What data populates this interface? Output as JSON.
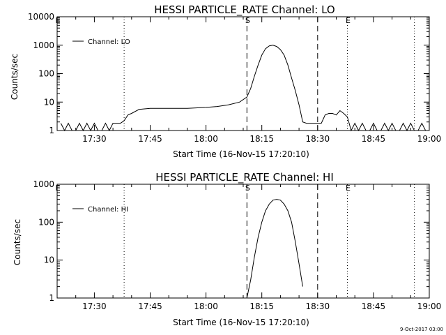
{
  "chart_data": [
    {
      "type": "line",
      "title": "HESSI PARTICLE_RATE Channel: LO",
      "xlabel": "Start Time (16-Nov-15 17:20:10)",
      "ylabel": "Counts/sec",
      "yscale": "log",
      "xlim": [
        "17:20",
        "19:00"
      ],
      "ylim": [
        1,
        10000
      ],
      "x_ticks": [
        "17:30",
        "17:45",
        "18:00",
        "18:15",
        "18:30",
        "18:45",
        "19:00"
      ],
      "y_ticks": [
        "1",
        "10",
        "100",
        "1000",
        "10000"
      ],
      "legend": {
        "position": "top-left",
        "entries": [
          "Channel: LO"
        ]
      },
      "markers": [
        {
          "label": "E",
          "time": "17:20",
          "style": "dotted"
        },
        {
          "label": "",
          "time": "17:38",
          "style": "dotted"
        },
        {
          "label": "S",
          "time": "18:11",
          "style": "dashed"
        },
        {
          "label": "",
          "time": "18:30",
          "style": "dashed"
        },
        {
          "label": "E",
          "time": "18:38",
          "style": "dotted"
        },
        {
          "label": "",
          "time": "18:56",
          "style": "dotted"
        }
      ],
      "series": [
        {
          "name": "Channel: LO",
          "x": [
            "17:21",
            "17:22",
            "17:23",
            "17:24",
            "17:25",
            "17:26",
            "17:27",
            "17:28",
            "17:29",
            "17:30",
            "17:31",
            "17:32",
            "17:33",
            "17:34",
            "17:35",
            "17:36",
            "17:37",
            "17:38",
            "17:39",
            "17:40",
            "17:42",
            "17:45",
            "17:50",
            "17:55",
            "18:00",
            "18:03",
            "18:06",
            "18:09",
            "18:11",
            "18:12",
            "18:13",
            "18:14",
            "18:15",
            "18:16",
            "18:17",
            "18:18",
            "18:19",
            "18:20",
            "18:21",
            "18:22",
            "18:23",
            "18:24",
            "18:25",
            "18:26",
            "18:27",
            "18:28",
            "18:29",
            "18:30",
            "18:31",
            "18:32",
            "18:33",
            "18:34",
            "18:35",
            "18:36",
            "18:37",
            "18:38",
            "18:39",
            "18:40",
            "18:41",
            "18:42",
            "18:43",
            "18:44",
            "18:45",
            "18:46",
            "18:47",
            "18:48",
            "18:49",
            "18:50",
            "18:51",
            "18:52",
            "18:53",
            "18:54",
            "18:55",
            "18:56",
            "18:57",
            "18:58",
            "18:59"
          ],
          "y": [
            1.8,
            1,
            1.8,
            1,
            1,
            1.8,
            1,
            1.8,
            1,
            1.8,
            1,
            1,
            1.8,
            1,
            1.8,
            1.8,
            1.8,
            2.2,
            3.5,
            4,
            5.5,
            6,
            6,
            6,
            6.5,
            7,
            8,
            10,
            15,
            30,
            80,
            200,
            450,
            750,
            950,
            1000,
            900,
            700,
            450,
            200,
            70,
            25,
            8,
            2,
            1.8,
            1.8,
            1.8,
            1.8,
            1.8,
            3.5,
            4,
            4,
            3.5,
            5,
            4,
            3,
            1,
            1.8,
            1,
            1.8,
            1,
            1,
            1.8,
            1,
            1,
            1.8,
            1,
            1.8,
            1,
            1,
            1.8,
            1,
            1.8,
            1,
            1,
            1.8,
            1
          ]
        }
      ]
    },
    {
      "type": "line",
      "title": "HESSI PARTICLE_RATE Channel: HI",
      "xlabel": "Start Time (16-Nov-15 17:20:10)",
      "ylabel": "Counts/sec",
      "yscale": "log",
      "xlim": [
        "17:20",
        "19:00"
      ],
      "ylim": [
        1,
        1000
      ],
      "x_ticks": [
        "17:30",
        "17:45",
        "18:00",
        "18:15",
        "18:30",
        "18:45",
        "19:00"
      ],
      "y_ticks": [
        "1",
        "10",
        "100",
        "1000"
      ],
      "legend": {
        "position": "top-left",
        "entries": [
          "Channel: HI"
        ]
      },
      "markers": [
        {
          "label": "E",
          "time": "17:20",
          "style": "dotted"
        },
        {
          "label": "",
          "time": "17:38",
          "style": "dotted"
        },
        {
          "label": "S",
          "time": "18:11",
          "style": "dashed"
        },
        {
          "label": "",
          "time": "18:30",
          "style": "dashed"
        },
        {
          "label": "E",
          "time": "18:38",
          "style": "dotted"
        },
        {
          "label": "",
          "time": "18:56",
          "style": "dotted"
        }
      ],
      "series": [
        {
          "name": "Channel: HI",
          "x": [
            "18:11",
            "18:12",
            "18:13",
            "18:14",
            "18:15",
            "18:16",
            "18:17",
            "18:18",
            "18:19",
            "18:20",
            "18:21",
            "18:22",
            "18:23",
            "18:24",
            "18:25",
            "18:26"
          ],
          "y": [
            1,
            3,
            12,
            40,
            100,
            200,
            300,
            380,
            400,
            380,
            300,
            200,
            100,
            30,
            8,
            2
          ]
        }
      ]
    }
  ],
  "footer": {
    "timestamp": "9-Oct-2017 03:00"
  }
}
